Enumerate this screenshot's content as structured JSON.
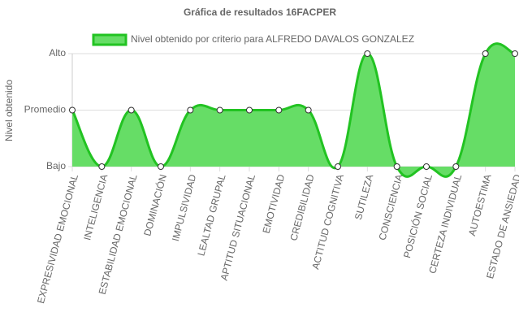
{
  "chart_data": {
    "type": "line",
    "title": "Gráfica de resultados 16FACPER",
    "y_label": "Nivel obtenido",
    "categories": [
      "EXPRESIVIDAD EMOCIONAL",
      "INTELIGENCIA",
      "ESTABILIDAD EMOCIONAL",
      "DOMINACIÓN",
      "IMPULSIVIDAD",
      "LEALTAD GRUPAL",
      "APTITUD SITUACIONAL",
      "EMOTIVIDAD",
      "CREDIBILIDAD",
      "ACTITUD COGNITIVA",
      "SUTILEZA",
      "CONSCIENCIA",
      "POSICIÓN SOCIAL",
      "CERTEZA INDIVIDUAL",
      "AUTOESTIMA",
      "ESTADO DE ANSIEDAD"
    ],
    "series": [
      {
        "name": "Nivel obtenido por criterio para ALFREDO DAVALOS GONZALEZ",
        "color": "#22c322",
        "fill": "#66dd66",
        "values": [
          2,
          1,
          2,
          1,
          2,
          2,
          2,
          2,
          2,
          1,
          3,
          1,
          1,
          1,
          3,
          3
        ]
      }
    ],
    "ylim": [
      1,
      3
    ],
    "yticks": [
      {
        "value": 1,
        "label": "Bajo"
      },
      {
        "value": 2,
        "label": "Promedio"
      },
      {
        "value": 3,
        "label": "Alto"
      }
    ],
    "grid": true,
    "fill_area": true
  }
}
